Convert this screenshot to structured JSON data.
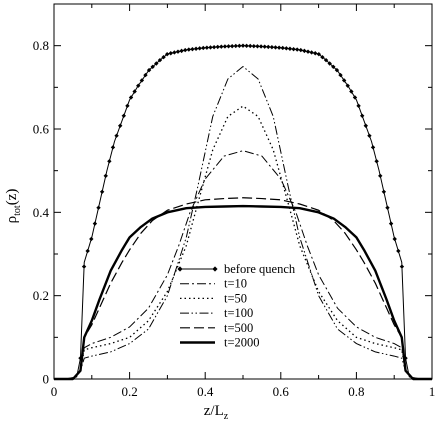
{
  "chart_data": {
    "type": "line",
    "title": "",
    "xlabel_main": "z/L",
    "xlabel_sub": "z",
    "ylabel_main": "ρ",
    "ylabel_sub": "tot",
    "ylabel_tail": "(z)",
    "xlim": [
      0,
      1
    ],
    "ylim": [
      0,
      0.9
    ],
    "x_ticks": [
      0,
      0.2,
      0.4,
      0.6,
      0.8,
      1
    ],
    "x_tick_labels": [
      "0",
      "0.2",
      "0.4",
      "0.6",
      "0.8",
      "1"
    ],
    "y_ticks": [
      0,
      0.2,
      0.4,
      0.6,
      0.8
    ],
    "y_tick_labels": [
      "0",
      "0.2",
      "0.4",
      "0.6",
      "0.8"
    ],
    "grid": false,
    "legend_position": "bottom-center",
    "series": [
      {
        "name": "before quench",
        "style": "solid-diamond",
        "x": [
          0,
          0.03,
          0.06,
          0.07,
          0.08,
          0.1,
          0.12,
          0.14,
          0.16,
          0.18,
          0.2,
          0.22,
          0.25,
          0.28,
          0.3,
          0.35,
          0.4,
          0.45,
          0.5,
          0.55,
          0.6,
          0.65,
          0.7,
          0.72,
          0.75,
          0.78,
          0.8,
          0.82,
          0.84,
          0.86,
          0.88,
          0.9,
          0.92,
          0.93,
          0.94,
          0.97,
          1
        ],
        "y": [
          0,
          0,
          0.005,
          0.05,
          0.28,
          0.34,
          0.42,
          0.5,
          0.57,
          0.62,
          0.67,
          0.7,
          0.74,
          0.765,
          0.78,
          0.79,
          0.795,
          0.798,
          0.8,
          0.798,
          0.795,
          0.79,
          0.78,
          0.765,
          0.74,
          0.7,
          0.67,
          0.62,
          0.57,
          0.5,
          0.42,
          0.34,
          0.28,
          0.05,
          0.005,
          0,
          0
        ]
      },
      {
        "name": "t=10",
        "style": "dash-dot",
        "x": [
          0,
          0.05,
          0.07,
          0.08,
          0.1,
          0.15,
          0.2,
          0.25,
          0.3,
          0.33,
          0.36,
          0.4,
          0.45,
          0.5,
          0.55,
          0.6,
          0.64,
          0.67,
          0.7,
          0.75,
          0.8,
          0.85,
          0.9,
          0.92,
          0.93,
          0.95,
          1
        ],
        "y": [
          0,
          0,
          0.02,
          0.075,
          0.085,
          0.1,
          0.125,
          0.17,
          0.25,
          0.32,
          0.4,
          0.48,
          0.535,
          0.548,
          0.535,
          0.48,
          0.4,
          0.32,
          0.25,
          0.17,
          0.125,
          0.1,
          0.085,
          0.075,
          0.02,
          0,
          0
        ]
      },
      {
        "name": "t=50",
        "style": "dotted",
        "x": [
          0,
          0.05,
          0.07,
          0.08,
          0.1,
          0.15,
          0.2,
          0.25,
          0.3,
          0.35,
          0.38,
          0.42,
          0.46,
          0.5,
          0.54,
          0.58,
          0.62,
          0.65,
          0.7,
          0.75,
          0.8,
          0.85,
          0.9,
          0.92,
          0.93,
          0.95,
          1
        ],
        "y": [
          0,
          0,
          0.02,
          0.07,
          0.075,
          0.085,
          0.1,
          0.14,
          0.21,
          0.32,
          0.42,
          0.55,
          0.63,
          0.655,
          0.63,
          0.55,
          0.42,
          0.32,
          0.21,
          0.14,
          0.1,
          0.085,
          0.075,
          0.07,
          0.02,
          0,
          0
        ]
      },
      {
        "name": "t=100",
        "style": "dash-dot-dot",
        "x": [
          0,
          0.05,
          0.07,
          0.08,
          0.1,
          0.15,
          0.2,
          0.25,
          0.3,
          0.35,
          0.38,
          0.42,
          0.46,
          0.5,
          0.54,
          0.58,
          0.62,
          0.65,
          0.7,
          0.75,
          0.8,
          0.85,
          0.9,
          0.92,
          0.93,
          0.95,
          1
        ],
        "y": [
          0,
          0,
          0.02,
          0.05,
          0.055,
          0.065,
          0.085,
          0.12,
          0.2,
          0.34,
          0.46,
          0.63,
          0.72,
          0.75,
          0.72,
          0.63,
          0.46,
          0.34,
          0.2,
          0.12,
          0.085,
          0.065,
          0.055,
          0.05,
          0.02,
          0,
          0
        ]
      },
      {
        "name": "t=500",
        "style": "dashed",
        "x": [
          0,
          0.05,
          0.07,
          0.08,
          0.1,
          0.12,
          0.15,
          0.18,
          0.2,
          0.23,
          0.26,
          0.3,
          0.35,
          0.4,
          0.45,
          0.5,
          0.55,
          0.6,
          0.65,
          0.7,
          0.74,
          0.77,
          0.8,
          0.82,
          0.85,
          0.88,
          0.9,
          0.92,
          0.93,
          0.95,
          1
        ],
        "y": [
          0,
          0,
          0.02,
          0.1,
          0.13,
          0.17,
          0.23,
          0.28,
          0.31,
          0.35,
          0.38,
          0.405,
          0.42,
          0.43,
          0.433,
          0.435,
          0.433,
          0.43,
          0.42,
          0.405,
          0.38,
          0.35,
          0.31,
          0.28,
          0.23,
          0.17,
          0.13,
          0.1,
          0.02,
          0,
          0
        ]
      },
      {
        "name": "t=2000",
        "style": "thick-solid",
        "x": [
          0,
          0.05,
          0.07,
          0.08,
          0.1,
          0.12,
          0.15,
          0.18,
          0.2,
          0.23,
          0.26,
          0.3,
          0.35,
          0.4,
          0.45,
          0.5,
          0.55,
          0.6,
          0.65,
          0.7,
          0.74,
          0.77,
          0.8,
          0.82,
          0.85,
          0.88,
          0.9,
          0.92,
          0.93,
          0.95,
          1
        ],
        "y": [
          0,
          0,
          0.02,
          0.1,
          0.14,
          0.19,
          0.26,
          0.31,
          0.34,
          0.365,
          0.385,
          0.4,
          0.41,
          0.413,
          0.414,
          0.415,
          0.414,
          0.413,
          0.41,
          0.4,
          0.385,
          0.365,
          0.34,
          0.31,
          0.26,
          0.19,
          0.14,
          0.1,
          0.02,
          0,
          0
        ]
      }
    ]
  }
}
